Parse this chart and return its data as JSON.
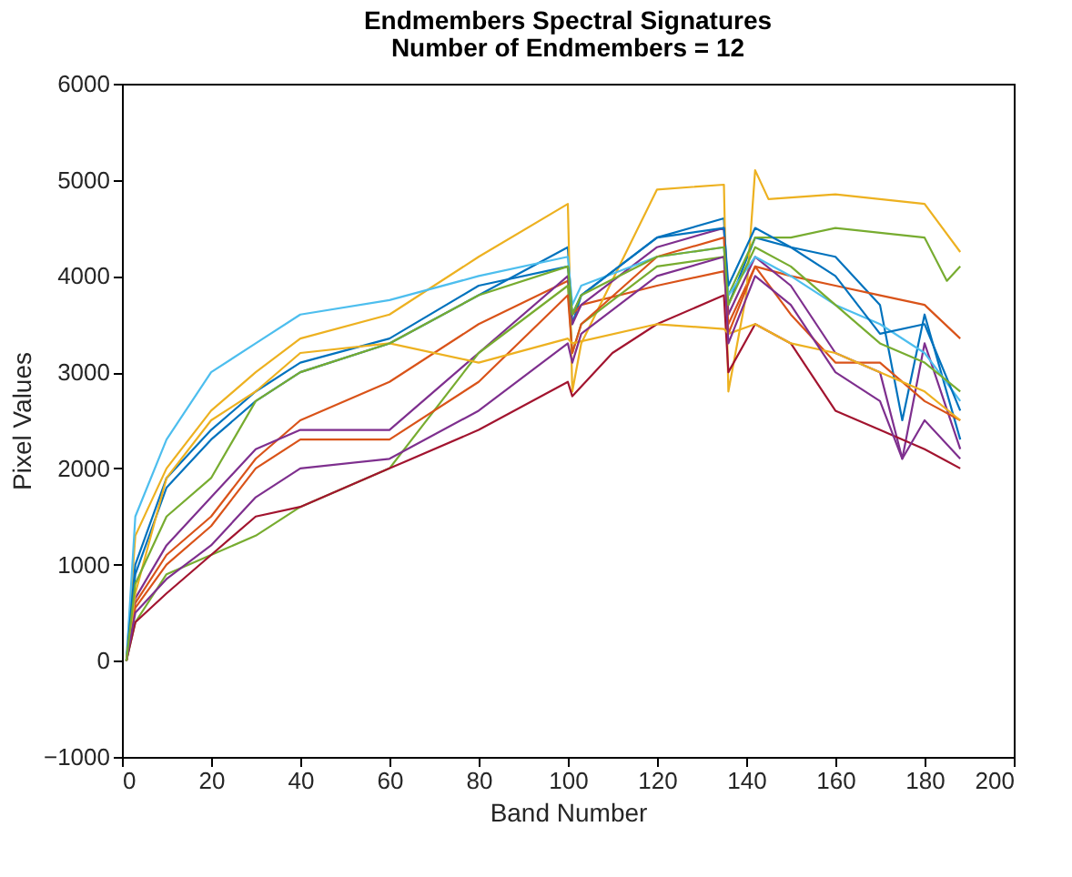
{
  "chart_data": {
    "type": "line",
    "title": "Endmembers Spectral Signatures",
    "subtitle": "Number of Endmembers = 12",
    "xlabel": "Band Number",
    "ylabel": "Pixel Values",
    "xlim": [
      0,
      200
    ],
    "xticks": [
      0,
      20,
      40,
      60,
      80,
      100,
      120,
      140,
      160,
      180,
      200
    ],
    "ylim": [
      -1000,
      6000
    ],
    "yticks": [
      -1000,
      0,
      1000,
      2000,
      3000,
      4000,
      5000,
      6000
    ],
    "grid": false,
    "line_style": "solid",
    "marker": "none",
    "series": [
      {
        "color": "#0072bd",
        "x": [
          1,
          3,
          10,
          20,
          30,
          40,
          60,
          80,
          100,
          101,
          103,
          120,
          135,
          136,
          142,
          150,
          160,
          170,
          175,
          180,
          188
        ],
        "values": [
          0,
          900,
          1800,
          2300,
          2700,
          3000,
          3300,
          3800,
          4300,
          3500,
          3800,
          4400,
          4600,
          3700,
          4400,
          4300,
          4200,
          3700,
          2500,
          3600,
          2300
        ]
      },
      {
        "color": "#d95319",
        "x": [
          1,
          3,
          10,
          20,
          30,
          40,
          60,
          80,
          100,
          101,
          103,
          120,
          135,
          136,
          142,
          150,
          160,
          170,
          180,
          188
        ],
        "values": [
          0,
          600,
          1100,
          1500,
          2100,
          2500,
          2900,
          3500,
          3950,
          3600,
          3700,
          3900,
          4050,
          3500,
          4100,
          4000,
          3900,
          3800,
          3700,
          3350
        ]
      },
      {
        "color": "#edb120",
        "x": [
          1,
          3,
          10,
          20,
          30,
          40,
          60,
          80,
          100,
          101,
          103,
          120,
          135,
          136,
          140,
          142,
          145,
          160,
          170,
          180,
          188
        ],
        "values": [
          0,
          1300,
          2000,
          2600,
          3000,
          3350,
          3600,
          4200,
          4750,
          2800,
          3300,
          4900,
          4950,
          2800,
          3800,
          5100,
          4800,
          4850,
          4800,
          4750,
          4250
        ]
      },
      {
        "color": "#7e2f8e",
        "x": [
          1,
          3,
          10,
          20,
          30,
          40,
          60,
          80,
          100,
          101,
          103,
          120,
          135,
          136,
          142,
          150,
          160,
          170,
          175,
          180,
          188
        ],
        "values": [
          0,
          650,
          1200,
          1700,
          2200,
          2400,
          2400,
          3200,
          4000,
          3500,
          3700,
          4300,
          4500,
          3600,
          4200,
          3900,
          3200,
          3000,
          2100,
          3300,
          2200
        ]
      },
      {
        "color": "#77ac30",
        "x": [
          1,
          3,
          10,
          20,
          30,
          40,
          60,
          80,
          100,
          101,
          103,
          120,
          135,
          136,
          142,
          150,
          160,
          170,
          180,
          185,
          188
        ],
        "values": [
          0,
          400,
          900,
          1100,
          1300,
          1600,
          2000,
          3200,
          3900,
          3200,
          3500,
          4100,
          4200,
          3800,
          4400,
          4400,
          4500,
          4450,
          4400,
          3950,
          4100
        ]
      },
      {
        "color": "#4dbeee",
        "x": [
          1,
          3,
          10,
          20,
          30,
          40,
          60,
          80,
          100,
          101,
          103,
          120,
          135,
          136,
          142,
          150,
          160,
          170,
          180,
          188
        ],
        "values": [
          0,
          1500,
          2300,
          3000,
          3300,
          3600,
          3750,
          4000,
          4200,
          3700,
          3900,
          4200,
          4300,
          3800,
          4200,
          4000,
          3700,
          3500,
          3200,
          2700
        ]
      },
      {
        "color": "#a2142f",
        "x": [
          1,
          3,
          10,
          20,
          30,
          40,
          60,
          80,
          100,
          101,
          110,
          120,
          135,
          136,
          142,
          150,
          160,
          170,
          180,
          188
        ],
        "values": [
          0,
          400,
          700,
          1100,
          1500,
          1600,
          2000,
          2400,
          2900,
          2750,
          3200,
          3500,
          3800,
          3000,
          3500,
          3300,
          2600,
          2400,
          2200,
          2000
        ]
      },
      {
        "color": "#0072bd",
        "x": [
          1,
          3,
          10,
          20,
          30,
          40,
          60,
          80,
          100,
          101,
          103,
          120,
          135,
          136,
          142,
          150,
          160,
          170,
          180,
          188
        ],
        "values": [
          0,
          1000,
          1900,
          2400,
          2800,
          3100,
          3350,
          3900,
          4100,
          3600,
          3800,
          4400,
          4500,
          3900,
          4500,
          4300,
          4000,
          3400,
          3500,
          2600
        ]
      },
      {
        "color": "#d95319",
        "x": [
          1,
          3,
          10,
          20,
          30,
          40,
          60,
          80,
          100,
          101,
          103,
          120,
          135,
          136,
          142,
          150,
          160,
          170,
          180,
          188
        ],
        "values": [
          0,
          550,
          1000,
          1400,
          2000,
          2300,
          2300,
          2900,
          3800,
          3200,
          3500,
          4200,
          4400,
          3400,
          4100,
          3600,
          3100,
          3100,
          2700,
          2500
        ]
      },
      {
        "color": "#edb120",
        "x": [
          1,
          3,
          10,
          20,
          30,
          40,
          60,
          80,
          100,
          101,
          120,
          135,
          136,
          142,
          150,
          160,
          170,
          180,
          188
        ],
        "values": [
          0,
          700,
          1900,
          2500,
          2800,
          3200,
          3300,
          3100,
          3350,
          3300,
          3500,
          3450,
          3400,
          3500,
          3300,
          3200,
          3000,
          2800,
          2500
        ]
      },
      {
        "color": "#7e2f8e",
        "x": [
          1,
          3,
          10,
          20,
          30,
          40,
          60,
          80,
          100,
          101,
          103,
          120,
          135,
          136,
          142,
          150,
          160,
          170,
          175,
          180,
          188
        ],
        "values": [
          0,
          500,
          850,
          1200,
          1700,
          2000,
          2100,
          2600,
          3300,
          3100,
          3400,
          4000,
          4200,
          3300,
          4000,
          3700,
          3000,
          2700,
          2100,
          2500,
          2100
        ]
      },
      {
        "color": "#77ac30",
        "x": [
          1,
          3,
          10,
          20,
          30,
          40,
          60,
          80,
          100,
          101,
          103,
          120,
          135,
          136,
          142,
          150,
          160,
          170,
          180,
          188
        ],
        "values": [
          0,
          800,
          1500,
          1900,
          2700,
          3000,
          3300,
          3800,
          4100,
          3600,
          3800,
          4200,
          4300,
          3700,
          4300,
          4100,
          3700,
          3300,
          3100,
          2800
        ]
      }
    ]
  }
}
